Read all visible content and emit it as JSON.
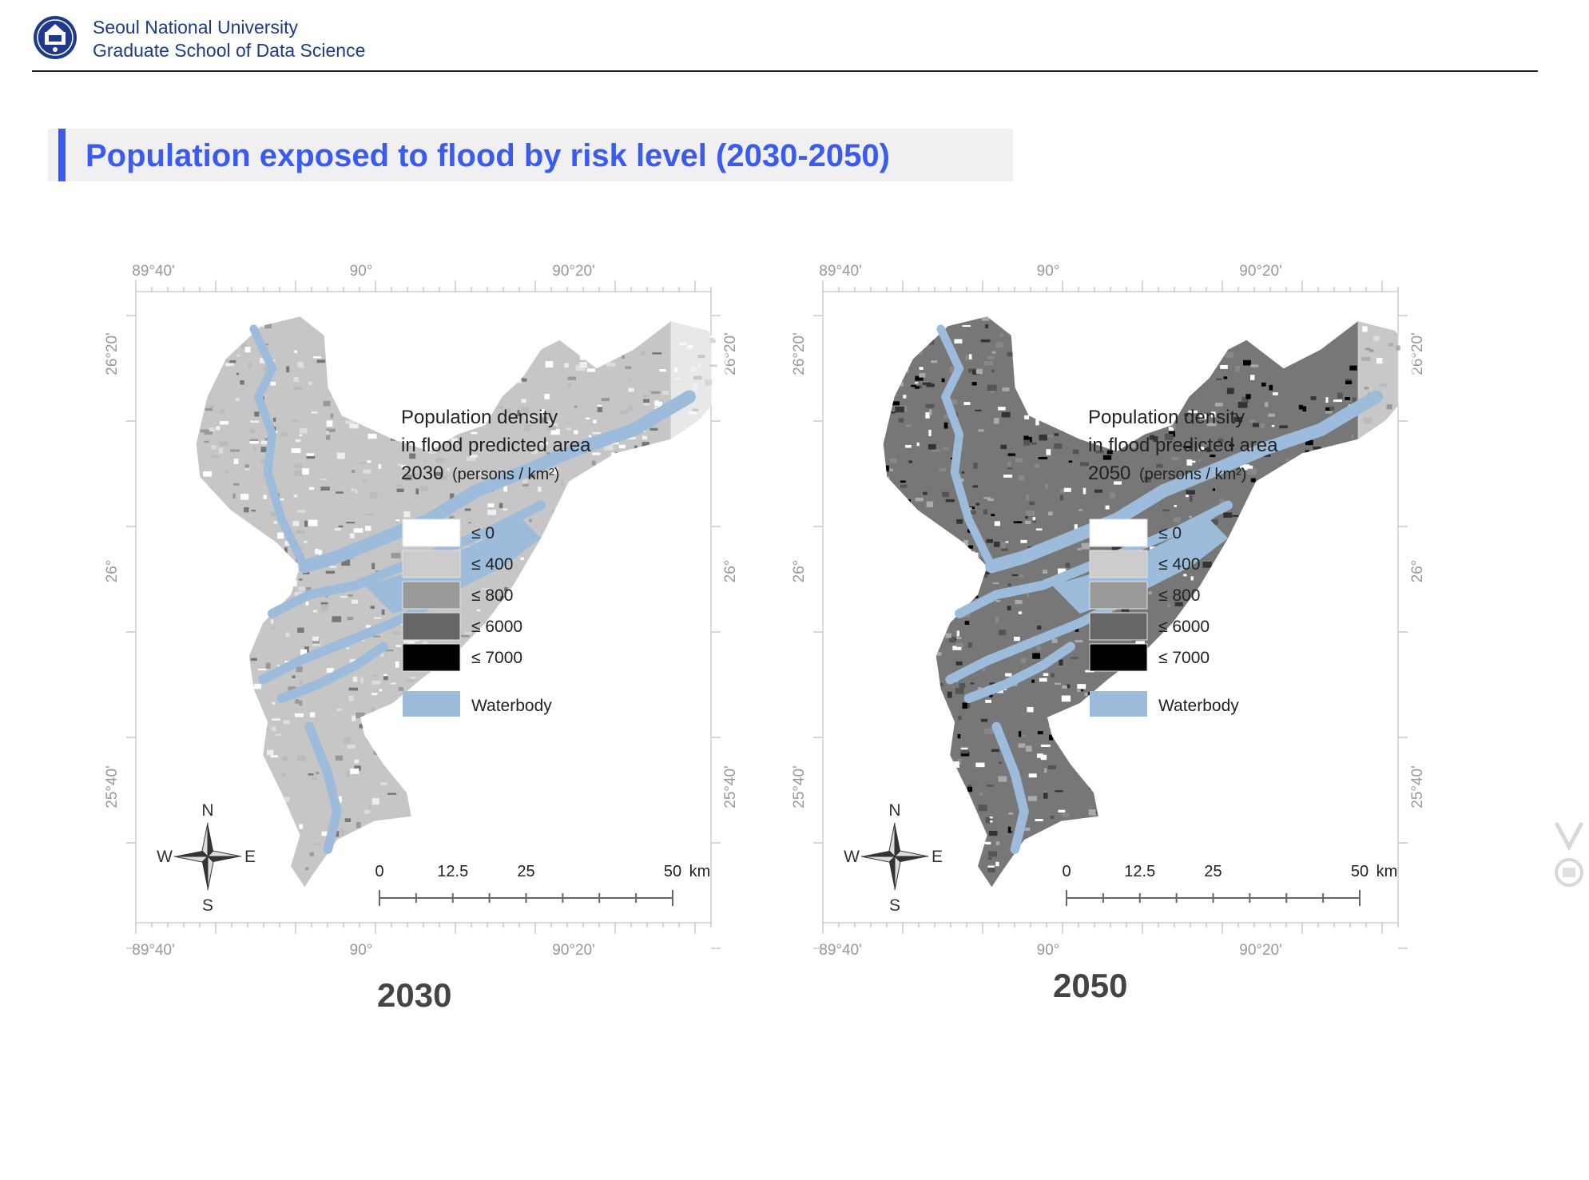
{
  "header": {
    "university": "Seoul National University",
    "school": "Graduate School of Data Science"
  },
  "title": "Population exposed to flood by risk level (2030-2050)",
  "maps": [
    {
      "year": "2030",
      "caption": "2030",
      "legend_title_1": "Population density",
      "legend_title_2": "in flood predicted area",
      "legend_year": "2030",
      "legend_units": "(persons / km²)"
    },
    {
      "year": "2050",
      "caption": "2050",
      "legend_title_1": "Population density",
      "legend_title_2": "in flood predicted area",
      "legend_year": "2050",
      "legend_units": "(persons / km²)"
    }
  ],
  "legend": {
    "classes": [
      {
        "label": "≤ 0",
        "color": "#ffffff"
      },
      {
        "label": "≤ 400",
        "color": "#cccccc"
      },
      {
        "label": "≤ 800",
        "color": "#999999"
      },
      {
        "label": "≤ 6000",
        "color": "#666666"
      },
      {
        "label": "≤ 7000",
        "color": "#000000"
      }
    ],
    "waterbody_label": "Waterbody",
    "waterbody_color": "#9dbbdb"
  },
  "axis": {
    "top_ticks": [
      "89°40'",
      "90°",
      "90°20'"
    ],
    "bottom_ticks": [
      "89°40'",
      "90°",
      "90°20'"
    ],
    "side_ticks": [
      "26°20'",
      "26°",
      "25°40'"
    ]
  },
  "compass": {
    "n": "N",
    "s": "S",
    "e": "E",
    "w": "W"
  },
  "scalebar": {
    "labels": [
      "0",
      "12.5",
      "25",
      "50"
    ],
    "unit": "km"
  },
  "colors": {
    "accent": "#3b5bf0",
    "brand": "#1f3a8a"
  }
}
